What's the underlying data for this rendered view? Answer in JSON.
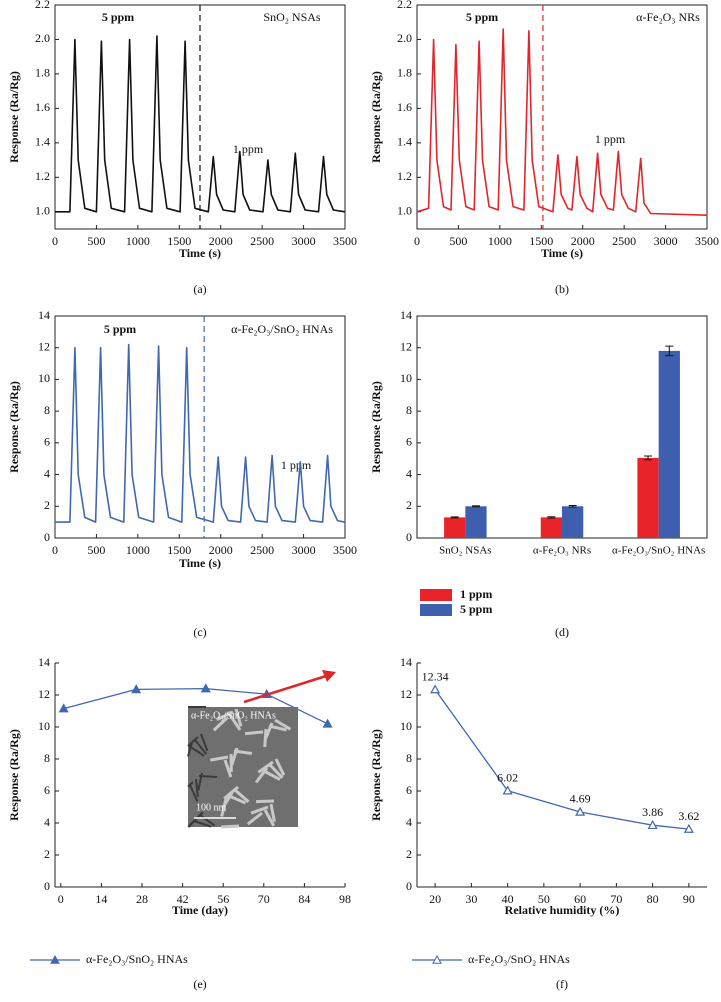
{
  "chart_data": [
    {
      "type": "line",
      "panel_label": "(a)",
      "x_label": "Time (s)",
      "y_label": "Response (Ra/Rg)",
      "annotations": [
        "5 ppm",
        "1 ppm",
        "SnO₂ NSAs"
      ],
      "xlim": [
        0,
        3500
      ],
      "xticks": [
        0,
        500,
        1000,
        1500,
        2000,
        2500,
        3000,
        3500
      ],
      "ylim": [
        0.9,
        2.2
      ],
      "yticks": [
        {
          "value": 1,
          "label": "1.0"
        },
        1.2,
        1.4,
        1.6,
        1.8,
        {
          "value": 2,
          "label": "2.0"
        },
        2.2
      ],
      "divider_x": 1750,
      "x": [
        0,
        180,
        240,
        280,
        360,
        500,
        560,
        600,
        680,
        840,
        900,
        940,
        1020,
        1170,
        1230,
        1270,
        1350,
        1510,
        1570,
        1610,
        1690,
        1850,
        1910,
        1950,
        2030,
        2170,
        2230,
        2270,
        2350,
        2510,
        2570,
        2610,
        2690,
        2840,
        2900,
        2940,
        3020,
        3180,
        3240,
        3280,
        3360,
        3500
      ],
      "series": [
        {
          "color": "#111111",
          "values": [
            1.0,
            1.0,
            2.0,
            1.3,
            1.02,
            1.0,
            1.99,
            1.3,
            1.02,
            1.0,
            2.0,
            1.3,
            1.02,
            1.0,
            2.02,
            1.3,
            1.02,
            1.0,
            1.99,
            1.3,
            1.02,
            1.0,
            1.32,
            1.1,
            1.01,
            1.0,
            1.35,
            1.1,
            1.01,
            1.0,
            1.3,
            1.1,
            1.01,
            1.0,
            1.34,
            1.1,
            1.01,
            1.0,
            1.32,
            1.1,
            1.01,
            1.0
          ]
        }
      ]
    },
    {
      "type": "line",
      "panel_label": "(b)",
      "x_label": "Time (s)",
      "y_label": "Response (Ra/Rg)",
      "annotations": [
        "5 ppm",
        "1 ppm",
        "α-Fe₂O₃ NRs"
      ],
      "xlim": [
        0,
        3500
      ],
      "xticks": [
        0,
        500,
        1000,
        1500,
        2000,
        2500,
        3000,
        3500
      ],
      "ylim": [
        0.9,
        2.2
      ],
      "yticks": [
        {
          "value": 1,
          "label": "1.0"
        },
        1.2,
        1.4,
        1.6,
        1.8,
        {
          "value": 2,
          "label": "2.0"
        },
        2.2
      ],
      "divider_x": 1520,
      "x": [
        0,
        140,
        200,
        240,
        320,
        410,
        470,
        510,
        590,
        690,
        750,
        790,
        870,
        980,
        1040,
        1080,
        1160,
        1290,
        1350,
        1390,
        1470,
        1640,
        1700,
        1740,
        1820,
        1870,
        1930,
        1970,
        2050,
        2120,
        2180,
        2220,
        2300,
        2370,
        2430,
        2470,
        2550,
        2640,
        2700,
        2740,
        2820,
        3500
      ],
      "series": [
        {
          "color": "#e0262b",
          "values": [
            1.0,
            1.02,
            2.0,
            1.3,
            1.03,
            1.01,
            1.97,
            1.3,
            1.03,
            1.01,
            1.99,
            1.3,
            1.03,
            1.01,
            2.06,
            1.3,
            1.03,
            1.01,
            2.05,
            1.3,
            1.03,
            1.0,
            1.33,
            1.1,
            1.02,
            1.01,
            1.32,
            1.1,
            1.02,
            1.0,
            1.34,
            1.1,
            1.02,
            1.01,
            1.35,
            1.1,
            1.02,
            1.0,
            1.31,
            1.05,
            0.99,
            0.98
          ]
        }
      ]
    },
    {
      "type": "line",
      "panel_label": "(c)",
      "x_label": "Time (s)",
      "y_label": "Response (Ra/Rg)",
      "annotations": [
        "5 ppm",
        "1 ppm",
        "α-Fe₂O₃/SnO₂ HNAs"
      ],
      "xlim": [
        0,
        3500
      ],
      "xticks": [
        0,
        500,
        1000,
        1500,
        2000,
        2500,
        3000,
        3500
      ],
      "ylim": [
        0,
        14
      ],
      "yticks": [
        0,
        2,
        4,
        6,
        8,
        10,
        12,
        14
      ],
      "divider_x": 1800,
      "x": [
        0,
        180,
        240,
        280,
        360,
        490,
        550,
        590,
        670,
        830,
        890,
        930,
        1010,
        1190,
        1250,
        1290,
        1370,
        1530,
        1590,
        1630,
        1710,
        1910,
        1970,
        2010,
        2090,
        2240,
        2300,
        2340,
        2420,
        2560,
        2620,
        2660,
        2740,
        2900,
        2960,
        3000,
        3080,
        3230,
        3290,
        3330,
        3410,
        3500
      ],
      "series": [
        {
          "color": "#4068b0",
          "values": [
            1.0,
            1.0,
            12.0,
            4.0,
            1.3,
            1.0,
            12.0,
            4.0,
            1.3,
            1.0,
            12.2,
            4.0,
            1.3,
            1.0,
            12.1,
            4.0,
            1.3,
            1.0,
            12.0,
            4.0,
            1.3,
            1.0,
            5.1,
            2.0,
            1.1,
            1.0,
            5.1,
            2.0,
            1.1,
            1.0,
            5.2,
            2.0,
            1.1,
            1.0,
            4.8,
            2.0,
            1.1,
            1.0,
            5.2,
            2.0,
            1.1,
            1.0
          ]
        }
      ]
    },
    {
      "type": "bar",
      "panel_label": "(d)",
      "y_label": "Response (Ra/Rg)",
      "categories": [
        "SnO₂ NSAs",
        "α-Fe₂O₃ NRs",
        "α-Fe₂O₃/SnO₂ HNAs"
      ],
      "ylim": [
        0,
        14
      ],
      "yticks": [
        0,
        2,
        4,
        6,
        8,
        10,
        12,
        14
      ],
      "series": [
        {
          "name": "1 ppm",
          "color": "#e8242a",
          "values": [
            1.3,
            1.3,
            5.05
          ],
          "errors": [
            0.03,
            0.04,
            0.12
          ]
        },
        {
          "name": "5 ppm",
          "color": "#3d5fae",
          "values": [
            2.0,
            2.0,
            11.8
          ],
          "errors": [
            0.03,
            0.05,
            0.3
          ]
        }
      ]
    },
    {
      "type": "line",
      "panel_label": "(e)",
      "x_label": "Time (day)",
      "y_label": "Response (Ra/Rg)",
      "inset": {
        "title": "α-Fe₂O₃/SnO₂ HNAs",
        "scale_bar": "100 nm"
      },
      "xlim": [
        -2,
        98
      ],
      "xticks": [
        0,
        14,
        28,
        42,
        56,
        70,
        84,
        98
      ],
      "ylim": [
        0,
        14
      ],
      "yticks": [
        0,
        2,
        4,
        6,
        8,
        10,
        12,
        14
      ],
      "marker": "filled-triangle",
      "x": [
        1,
        26,
        50,
        71,
        92
      ],
      "series": [
        {
          "name": "α-Fe₂O₃/SnO₂ HNAs",
          "color": "#4068b0",
          "values": [
            11.15,
            12.35,
            12.4,
            12.05,
            10.2
          ]
        }
      ]
    },
    {
      "type": "line",
      "panel_label": "(f)",
      "x_label": "Relative humidity (%)",
      "y_label": "Response (Ra/Rg)",
      "xlim": [
        15,
        95
      ],
      "xticks": [
        20,
        30,
        40,
        50,
        60,
        70,
        80,
        90
      ],
      "ylim": [
        0,
        14
      ],
      "yticks": [
        0,
        2,
        4,
        6,
        8,
        10,
        12,
        14
      ],
      "marker": "open-triangle",
      "data_labels": true,
      "x": [
        20,
        40,
        60,
        80,
        90
      ],
      "series": [
        {
          "name": "α-Fe₂O₃/SnO₂ HNAs",
          "color": "#4068b0",
          "values": [
            12.34,
            6.02,
            4.69,
            3.86,
            3.62
          ]
        }
      ]
    }
  ]
}
